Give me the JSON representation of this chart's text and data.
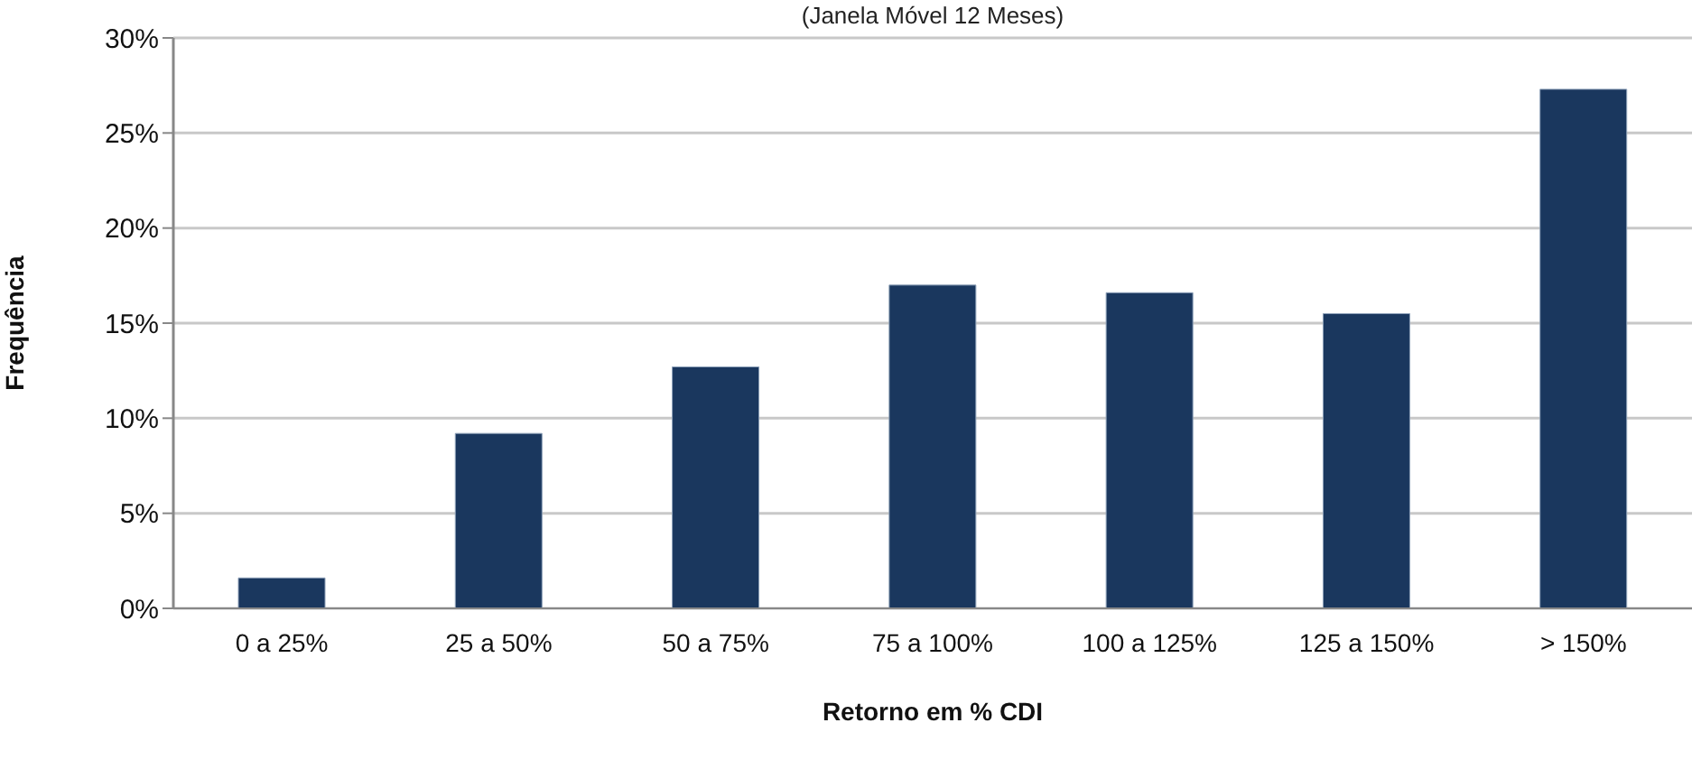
{
  "chart_data": {
    "type": "bar",
    "subtitle": "(Janela Móvel 12 Meses)",
    "xlabel": "Retorno em % CDI",
    "ylabel": "Frequência",
    "categories": [
      "0 a 25%",
      "25 a 50%",
      "50 a 75%",
      "75 a 100%",
      "100 a 125%",
      "125 a 150%",
      "> 150%"
    ],
    "values": [
      1.6,
      9.2,
      12.7,
      17.0,
      16.6,
      15.5,
      27.3
    ],
    "color": "#1a375e",
    "ylim": [
      0,
      30
    ],
    "yticks": [
      {
        "value": 0,
        "label": "0%"
      },
      {
        "value": 5,
        "label": "5%"
      },
      {
        "value": 10,
        "label": "10%"
      },
      {
        "value": 15,
        "label": "15%"
      },
      {
        "value": 20,
        "label": "20%"
      },
      {
        "value": 25,
        "label": "25%"
      },
      {
        "value": 30,
        "label": "30%"
      }
    ],
    "grid": "y"
  }
}
